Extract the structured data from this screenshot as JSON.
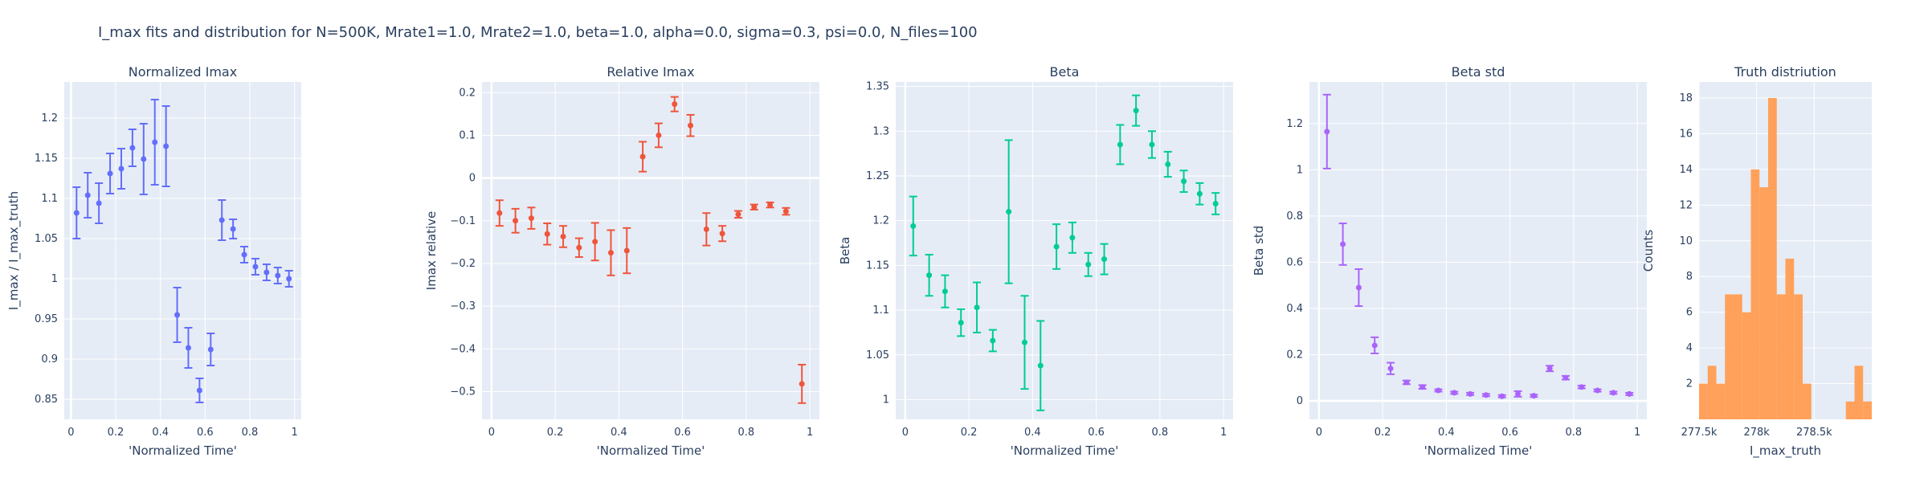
{
  "title": "I_max fits and distribution for N=500K, Mrate1=1.0, Mrate2=1.0, beta=1.0, alpha=0.0, sigma=0.3,  psi=0.0, N_files=100",
  "chart_data": [
    {
      "type": "scatter",
      "title": "Normalized Imax",
      "xlabel": "'Normalized Time'",
      "ylabel": "I_max / I_max_truth",
      "color": "#636EFA",
      "xlim": [
        -0.03,
        1.03
      ],
      "ylim": [
        0.825,
        1.245
      ],
      "xticks": [
        0,
        0.2,
        0.4,
        0.6,
        0.8,
        1
      ],
      "xtick_labels": [
        "0",
        "0.2",
        "0.4",
        "0.6",
        "0.8",
        "1"
      ],
      "yticks": [
        0.85,
        0.9,
        0.95,
        1,
        1.05,
        1.1,
        1.15,
        1.2
      ],
      "ytick_labels": [
        "0.85",
        "0.9",
        "0.95",
        "1",
        "1.05",
        "1.1",
        "1.15",
        "1.2"
      ],
      "x": [
        0.025,
        0.075,
        0.125,
        0.175,
        0.225,
        0.275,
        0.325,
        0.375,
        0.425,
        0.475,
        0.525,
        0.575,
        0.625,
        0.675,
        0.725,
        0.775,
        0.825,
        0.875,
        0.925,
        0.975
      ],
      "y": [
        1.082,
        1.104,
        1.094,
        1.131,
        1.137,
        1.163,
        1.149,
        1.17,
        1.165,
        0.955,
        0.914,
        0.861,
        0.912,
        1.073,
        1.062,
        1.03,
        1.015,
        1.008,
        1.004,
        1.0
      ],
      "err": [
        0.032,
        0.028,
        0.025,
        0.025,
        0.025,
        0.023,
        0.044,
        0.053,
        0.05,
        0.034,
        0.025,
        0.015,
        0.02,
        0.025,
        0.012,
        0.01,
        0.01,
        0.01,
        0.01,
        0.01
      ]
    },
    {
      "type": "scatter",
      "title": "Relative Imax",
      "xlabel": "'Normalized Time'",
      "ylabel": "Imax relative",
      "color": "#EF553B",
      "xlim": [
        -0.03,
        1.03
      ],
      "ylim": [
        -0.565,
        0.225
      ],
      "xticks": [
        0,
        0.2,
        0.4,
        0.6,
        0.8,
        1
      ],
      "xtick_labels": [
        "0",
        "0.2",
        "0.4",
        "0.6",
        "0.8",
        "1"
      ],
      "yticks": [
        -0.5,
        -0.4,
        -0.3,
        -0.2,
        -0.1,
        0,
        0.1,
        0.2
      ],
      "ytick_labels": [
        "−0.5",
        "−0.4",
        "−0.3",
        "−0.2",
        "−0.1",
        "0",
        "0.1",
        "0.2"
      ],
      "x": [
        0.025,
        0.075,
        0.125,
        0.175,
        0.225,
        0.275,
        0.325,
        0.375,
        0.425,
        0.475,
        0.525,
        0.575,
        0.625,
        0.675,
        0.725,
        0.775,
        0.825,
        0.875,
        0.925,
        0.975
      ],
      "y": [
        -0.082,
        -0.1,
        -0.094,
        -0.131,
        -0.137,
        -0.163,
        -0.149,
        -0.175,
        -0.17,
        0.05,
        0.1,
        0.173,
        0.123,
        -0.12,
        -0.13,
        -0.085,
        -0.068,
        -0.063,
        -0.078,
        -0.482
      ],
      "err": [
        0.03,
        0.028,
        0.025,
        0.025,
        0.025,
        0.022,
        0.044,
        0.053,
        0.053,
        0.035,
        0.028,
        0.017,
        0.025,
        0.038,
        0.018,
        0.008,
        0.006,
        0.006,
        0.008,
        0.045
      ]
    },
    {
      "type": "scatter",
      "title": "Beta",
      "xlabel": "'Normalized Time'",
      "ylabel": "Beta",
      "color": "#00CC96",
      "xlim": [
        -0.03,
        1.03
      ],
      "ylim": [
        0.978,
        1.355
      ],
      "xticks": [
        0,
        0.2,
        0.4,
        0.6,
        0.8,
        1
      ],
      "xtick_labels": [
        "0",
        "0.2",
        "0.4",
        "0.6",
        "0.8",
        "1"
      ],
      "yticks": [
        1,
        1.05,
        1.1,
        1.15,
        1.2,
        1.25,
        1.3,
        1.35
      ],
      "ytick_labels": [
        "1",
        "1.05",
        "1.1",
        "1.15",
        "1.2",
        "1.25",
        "1.3",
        "1.35"
      ],
      "x": [
        0.025,
        0.075,
        0.125,
        0.175,
        0.225,
        0.275,
        0.325,
        0.375,
        0.425,
        0.475,
        0.525,
        0.575,
        0.625,
        0.675,
        0.725,
        0.775,
        0.825,
        0.875,
        0.925,
        0.975
      ],
      "y": [
        1.194,
        1.139,
        1.121,
        1.086,
        1.103,
        1.066,
        1.21,
        1.064,
        1.038,
        1.171,
        1.181,
        1.151,
        1.157,
        1.285,
        1.323,
        1.285,
        1.263,
        1.244,
        1.23,
        1.219
      ],
      "err": [
        0.033,
        0.023,
        0.018,
        0.015,
        0.028,
        0.012,
        0.08,
        0.052,
        0.05,
        0.025,
        0.017,
        0.013,
        0.017,
        0.022,
        0.017,
        0.015,
        0.014,
        0.012,
        0.012,
        0.012
      ]
    },
    {
      "type": "scatter",
      "title": "Beta std",
      "xlabel": "'Normalized Time'",
      "ylabel": "Beta std",
      "color": "#AB63FA",
      "xlim": [
        -0.03,
        1.03
      ],
      "ylim": [
        -0.08,
        1.38
      ],
      "xticks": [
        0,
        0.2,
        0.4,
        0.6,
        0.8,
        1
      ],
      "xtick_labels": [
        "0",
        "0.2",
        "0.4",
        "0.6",
        "0.8",
        "1"
      ],
      "yticks": [
        0,
        0.2,
        0.4,
        0.6,
        0.8,
        1,
        1.2
      ],
      "ytick_labels": [
        "0",
        "0.2",
        "0.4",
        "0.6",
        "0.8",
        "1",
        "1.2"
      ],
      "x": [
        0.025,
        0.075,
        0.125,
        0.175,
        0.225,
        0.275,
        0.325,
        0.375,
        0.425,
        0.475,
        0.525,
        0.575,
        0.625,
        0.675,
        0.725,
        0.775,
        0.825,
        0.875,
        0.925,
        0.975
      ],
      "y": [
        1.165,
        0.678,
        0.49,
        0.24,
        0.14,
        0.08,
        0.06,
        0.045,
        0.035,
        0.03,
        0.025,
        0.02,
        0.03,
        0.022,
        0.14,
        0.1,
        0.06,
        0.045,
        0.035,
        0.03
      ],
      "err": [
        0.16,
        0.09,
        0.08,
        0.035,
        0.025,
        0.008,
        0.008,
        0.005,
        0.005,
        0.005,
        0.005,
        0.005,
        0.012,
        0.005,
        0.012,
        0.008,
        0.006,
        0.005,
        0.005,
        0.005
      ]
    },
    {
      "type": "bar",
      "title": "Truth distriution",
      "xlabel": "I_max_truth",
      "ylabel": "Counts",
      "color": "#FFA15A",
      "xlim": [
        277.5,
        279.0
      ],
      "ylim": [
        0,
        18.9
      ],
      "xticks": [
        277.5,
        278.0,
        278.5
      ],
      "xtick_labels": [
        "277.5k",
        "278k",
        "278.5k"
      ],
      "yticks": [
        2,
        4,
        6,
        8,
        10,
        12,
        14,
        16,
        18
      ],
      "ytick_labels": [
        "2",
        "4",
        "6",
        "8",
        "10",
        "12",
        "14",
        "16",
        "18"
      ],
      "bin_width": 0.075,
      "bin_starts": [
        277.5,
        277.575,
        277.65,
        277.725,
        277.8,
        277.875,
        277.95,
        278.025,
        278.1,
        278.175,
        278.25,
        278.325,
        278.4,
        278.475,
        278.55,
        278.625,
        278.7,
        278.775,
        278.85,
        278.925
      ],
      "counts": [
        2,
        3,
        2,
        7,
        7,
        6,
        14,
        13,
        18,
        7,
        9,
        7,
        2,
        0,
        0,
        0,
        0,
        1,
        3,
        1
      ]
    }
  ]
}
